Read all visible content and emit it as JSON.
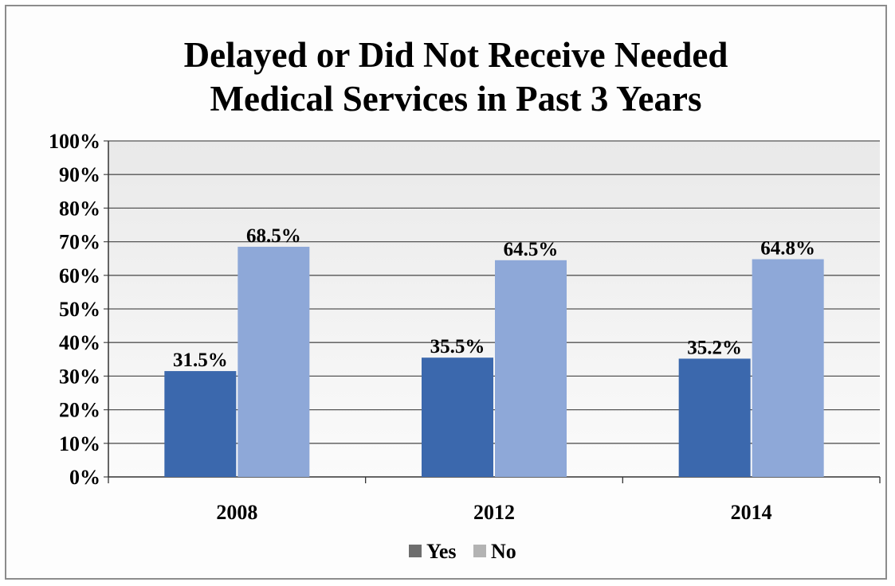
{
  "chart_data": {
    "type": "bar",
    "title": "Delayed or Did Not Receive Needed Medical Services in Past 3 Years",
    "title_lines": [
      "Delayed or Did Not Receive Needed",
      "Medical Services in Past 3 Years"
    ],
    "categories": [
      "2008",
      "2012",
      "2014"
    ],
    "series": [
      {
        "name": "Yes",
        "values": [
          31.5,
          35.5,
          35.2
        ],
        "data_labels": [
          "31.5%",
          "35.5%",
          "35.2%"
        ],
        "color": "#3b68ad",
        "legend_swatch_color": "#6e6e6e"
      },
      {
        "name": "No",
        "values": [
          68.5,
          64.5,
          64.8
        ],
        "data_labels": [
          "68.5%",
          "64.5%",
          "64.8%"
        ],
        "color": "#8ea8d8",
        "legend_swatch_color": "#b3b3b3"
      }
    ],
    "ylim": [
      0,
      100
    ],
    "y_ticks": [
      0,
      10,
      20,
      30,
      40,
      50,
      60,
      70,
      80,
      90,
      100
    ],
    "y_tick_labels": [
      "0%",
      "10%",
      "20%",
      "30%",
      "40%",
      "50%",
      "60%",
      "70%",
      "80%",
      "90%",
      "100%"
    ],
    "xlabel": "",
    "ylabel": "",
    "grid": true,
    "legend_position": "bottom",
    "colors": {
      "gridline": "#555555",
      "plot_background": "#efefef",
      "frame_border": "#8c8c8c"
    }
  }
}
